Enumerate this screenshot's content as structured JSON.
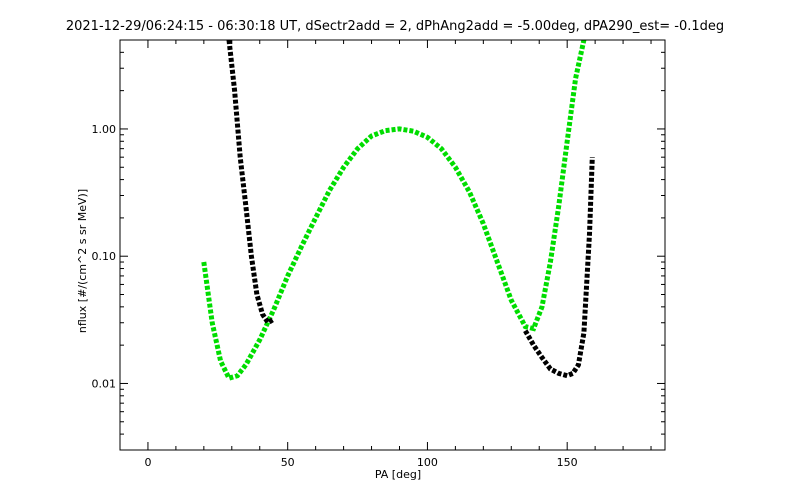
{
  "chart_data": {
    "type": "line",
    "title": "2021-12-29/06:24:15 - 06:30:18 UT, dSectr2add = 2, dPhAng2add = -5.00deg, dPA290_est=  -0.1deg",
    "xlabel": "PA [deg]",
    "ylabel": "nflux [#/(cm^2 s sr MeV)]",
    "xlim": [
      -10,
      185
    ],
    "ylim": [
      0.003,
      5
    ],
    "yscale": "log",
    "x_ticks": [
      0,
      50,
      100,
      150
    ],
    "x_tick_labels": [
      "0",
      "50",
      "100",
      "150"
    ],
    "y_ticks": [
      0.01,
      0.1,
      1.0
    ],
    "y_tick_labels": [
      "0.01",
      "0.10",
      "1.00"
    ],
    "grid": false,
    "series": [
      {
        "color": "#00dd00",
        "style": "thick-dashed",
        "x": [
          20,
          23,
          26,
          29,
          32,
          35,
          40,
          45,
          50,
          55,
          60,
          65,
          70,
          75,
          80,
          85,
          90,
          95,
          100,
          105,
          110,
          115,
          120,
          125,
          130,
          135,
          138,
          141,
          144,
          147,
          150,
          153,
          156
        ],
        "y": [
          0.09,
          0.03,
          0.015,
          0.011,
          0.0115,
          0.014,
          0.022,
          0.038,
          0.07,
          0.12,
          0.2,
          0.33,
          0.5,
          0.7,
          0.88,
          0.97,
          1.0,
          0.96,
          0.86,
          0.7,
          0.5,
          0.32,
          0.18,
          0.09,
          0.045,
          0.028,
          0.027,
          0.04,
          0.09,
          0.25,
          0.8,
          2.5,
          6.0
        ]
      },
      {
        "color": "#000000",
        "style": "thick-dashed",
        "x": [
          29,
          31,
          33,
          35,
          37,
          39,
          41,
          43,
          45
        ],
        "y": [
          6.0,
          2.0,
          0.6,
          0.25,
          0.1,
          0.05,
          0.035,
          0.03,
          0.032
        ]
      },
      {
        "color": "#000000",
        "style": "thick-dashed",
        "x": [
          135,
          138,
          141,
          144,
          147,
          150,
          152,
          154,
          156,
          158,
          159
        ],
        "y": [
          0.026,
          0.02,
          0.016,
          0.013,
          0.012,
          0.0115,
          0.012,
          0.014,
          0.025,
          0.15,
          0.6
        ]
      }
    ]
  }
}
